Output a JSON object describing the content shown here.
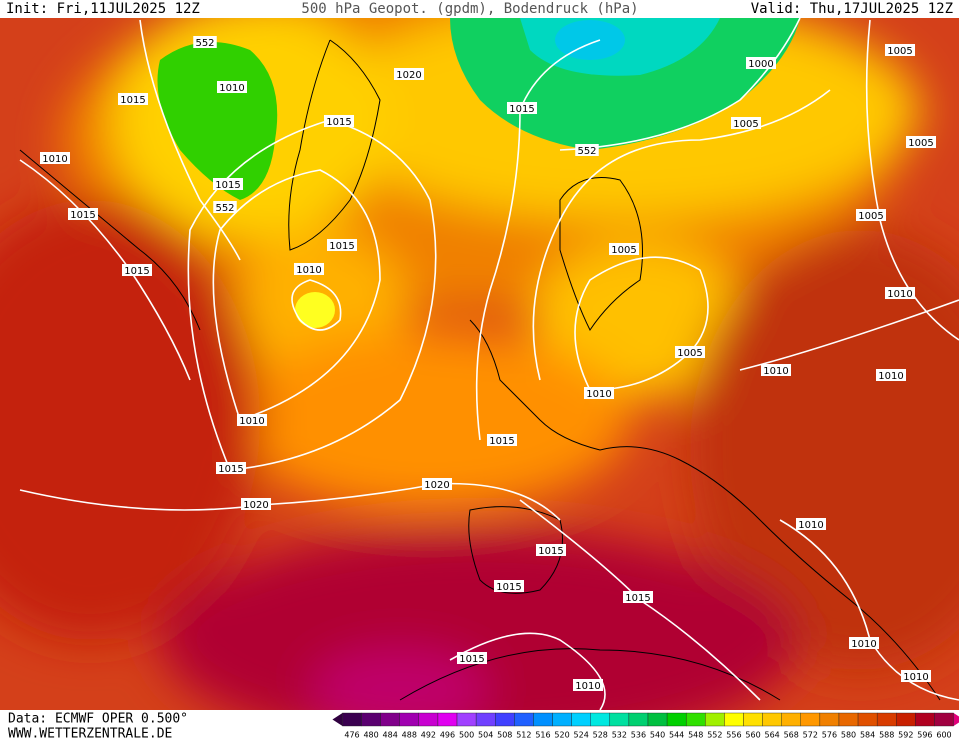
{
  "header": {
    "init": "Init: Fri,11JUL2025 12Z",
    "title": "500 hPa Geopot. (gpdm), Bodendruck (hPa)",
    "valid": "Valid: Thu,17JUL2025 12Z"
  },
  "footer": {
    "data": "Data: ECMWF OPER 0.500°",
    "site": "WWW.WETTERZENTRALE.DE"
  },
  "colorbar": [
    476,
    480,
    484,
    488,
    492,
    496,
    500,
    504,
    508,
    512,
    516,
    520,
    524,
    528,
    532,
    536,
    540,
    544,
    548,
    552,
    556,
    560,
    564,
    568,
    572,
    576,
    580,
    584,
    588,
    592,
    596,
    600
  ],
  "contour_labels": [
    "552",
    "1010",
    "1015",
    "1010",
    "1015",
    "1015",
    "552",
    "1015",
    "1015",
    "1015",
    "1010",
    "1020",
    "1015",
    "552",
    "1000",
    "1005",
    "1005",
    "1005",
    "1005",
    "1005",
    "1010",
    "1005",
    "1010",
    "1010",
    "1010",
    "1010",
    "1015",
    "1015",
    "1020",
    "1020",
    "1010",
    "1015",
    "1015",
    "1015",
    "1010",
    "1015",
    "1010",
    "1010"
  ]
}
